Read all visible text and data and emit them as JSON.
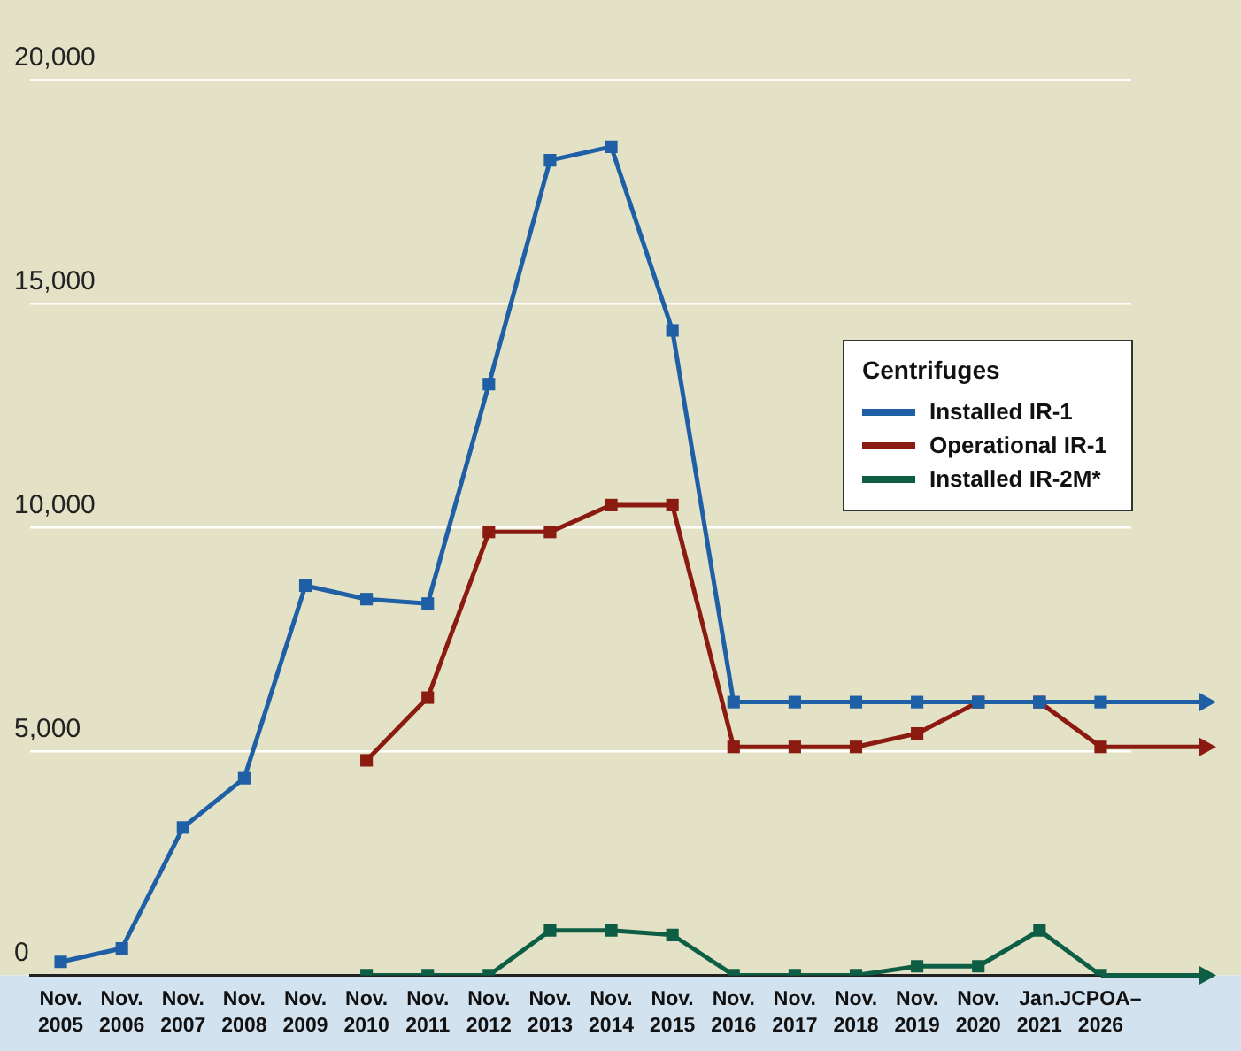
{
  "chart_data": {
    "type": "line",
    "categories": [
      "Nov. 2005",
      "Nov. 2006",
      "Nov. 2007",
      "Nov. 2008",
      "Nov. 2009",
      "Nov. 2010",
      "Nov. 2011",
      "Nov. 2012",
      "Nov. 2013",
      "Nov. 2014",
      "Nov. 2015",
      "Nov. 2016",
      "Nov. 2017",
      "Nov. 2018",
      "Nov. 2019",
      "Nov. 2020",
      "Jan. 2021",
      "JCPOA–2026"
    ],
    "series": [
      {
        "name": "Installed IR-1",
        "color": "#1f5fa6",
        "values": [
          300,
          600,
          3300,
          4400,
          8700,
          8400,
          8300,
          13200,
          18200,
          18500,
          14400,
          6100,
          6100,
          6100,
          6100,
          6100,
          6100,
          6100
        ]
      },
      {
        "name": "Operational IR-1",
        "color": "#8b1a10",
        "values": [
          null,
          null,
          null,
          null,
          null,
          4800,
          6200,
          9900,
          9900,
          10500,
          10500,
          5100,
          5100,
          5100,
          5400,
          6100,
          6100,
          5100
        ]
      },
      {
        "name": "Installed IR-2M*",
        "color": "#0e5e45",
        "values": [
          null,
          null,
          null,
          null,
          null,
          0,
          0,
          0,
          1000,
          1000,
          900,
          0,
          0,
          0,
          200,
          200,
          1000,
          0
        ]
      }
    ],
    "legend_title": "Centrifuges",
    "ylim": [
      0,
      20000
    ],
    "yticks": [
      0,
      {
        "value": 5000,
        "label": "5,000"
      },
      {
        "value": 10000,
        "label": "10,000"
      },
      {
        "value": 15000,
        "label": "15,000"
      },
      {
        "value": 20000,
        "label": "20,000"
      }
    ],
    "grid": "y",
    "legend": "right",
    "marker": "square",
    "line_style": "solid"
  }
}
